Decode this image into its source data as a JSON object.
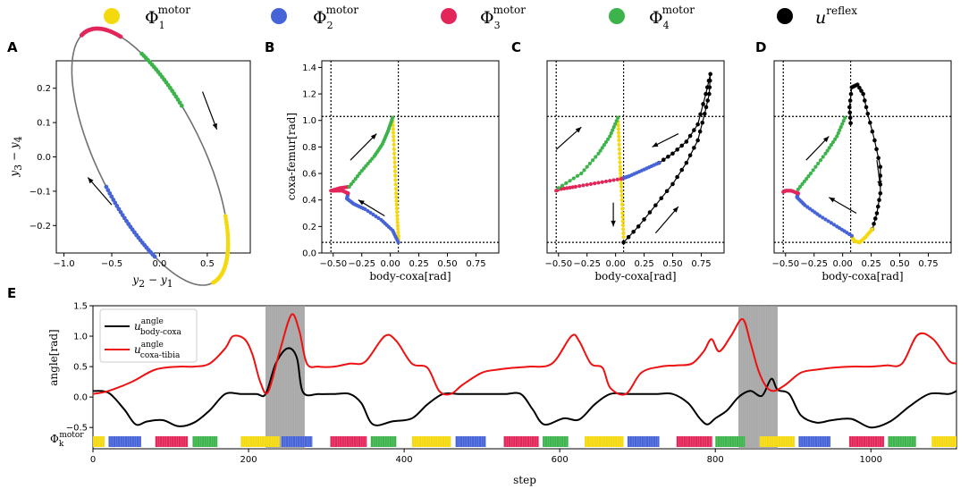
{
  "colors": {
    "phi1": "#f5d90f",
    "phi2": "#4664d8",
    "phi3": "#e2265a",
    "phi4": "#3cb44b",
    "reflex": "#000000",
    "gray": "#707070",
    "red_line": "#ee1111",
    "shade": "#8c8c8c"
  },
  "legend": [
    {
      "key": "phi1",
      "base": "Φ",
      "sub": "1",
      "sup": "motor"
    },
    {
      "key": "phi2",
      "base": "Φ",
      "sub": "2",
      "sup": "motor"
    },
    {
      "key": "phi3",
      "base": "Φ",
      "sub": "3",
      "sup": "motor"
    },
    {
      "key": "phi4",
      "base": "Φ",
      "sub": "4",
      "sup": "motor"
    },
    {
      "key": "reflex",
      "base": "u",
      "sub": "",
      "sup": "reflex"
    }
  ],
  "panels": {
    "A": {
      "letter": "A",
      "xlabel_base": "y",
      "xlabel_a": "2",
      "xlabel_op": " − ",
      "xlabel_b": "1",
      "ylabel_base": "y",
      "ylabel_a": "3",
      "ylabel_op": " − ",
      "ylabel_b": "4",
      "xticks": [
        "−1.0",
        "−0.5",
        "0.0",
        "0.5"
      ],
      "yticks": [
        "−0.2",
        "−0.1",
        "0.0",
        "0.1",
        "0.2"
      ]
    },
    "B": {
      "letter": "B",
      "xlabel": "body-coxa[rad]",
      "ylabel": "coxa-femur[rad]",
      "xticks": [
        "−0.50",
        "−0.25",
        "0.00",
        "0.25",
        "0.50",
        "0.75"
      ],
      "yticks": [
        "0.0",
        "0.2",
        "0.4",
        "0.6",
        "0.8",
        "1.0",
        "1.2",
        "1.4"
      ]
    },
    "C": {
      "letter": "C",
      "xlabel": "body-coxa[rad]",
      "xticks": [
        "−0.50",
        "−0.25",
        "0.00",
        "0.25",
        "0.50",
        "0.75"
      ]
    },
    "D": {
      "letter": "D",
      "xlabel": "body-coxa[rad]",
      "xticks": [
        "−0.50",
        "−0.25",
        "0.00",
        "0.25",
        "0.50",
        "0.75"
      ]
    },
    "E": {
      "letter": "E",
      "xlabel": "step",
      "ylabel": "angle[rad]",
      "xticks": [
        "0",
        "200",
        "400",
        "600",
        "800",
        "1000"
      ],
      "yticks": [
        "−0.5",
        "0.0",
        "0.5",
        "1.0",
        "1.5"
      ],
      "phase_label_base": "Φ",
      "phase_label_sub": "k",
      "phase_label_sup": "motor",
      "legend": [
        {
          "key": "black",
          "base": "u",
          "sup": "angle",
          "sub": "body-coxa"
        },
        {
          "key": "red",
          "base": "u",
          "sup": "angle",
          "sub": "coxa-tibia"
        }
      ]
    }
  },
  "chart_data": [
    {
      "type": "line",
      "panel": "A",
      "title": "",
      "xlabel": "y2 − y1",
      "ylabel": "y3 − y4",
      "xlim": [
        -1.08,
        0.95
      ],
      "ylim": [
        -0.28,
        0.28
      ],
      "description_points": "limit cycle ellipse",
      "ellipse": {
        "cx": -0.1,
        "cy": 0.0,
        "rx": 0.86,
        "ry": 0.262,
        "tilt_deg": -19
      },
      "phase_arcs": [
        {
          "phase": "phi1",
          "from_deg": -30,
          "to_deg": 22
        },
        {
          "phase": "phi2",
          "from_deg": -118,
          "to_deg": -80
        },
        {
          "phase": "phi3",
          "from_deg": 118,
          "to_deg": 158
        },
        {
          "phase": "phi4",
          "from_deg": 72,
          "to_deg": 102
        }
      ]
    },
    {
      "type": "scatter",
      "panel": "B",
      "xlabel": "body-coxa[rad]",
      "ylabel": "coxa-femur[rad]",
      "xlim": [
        -0.6,
        0.95
      ],
      "ylim": [
        0.0,
        1.45
      ],
      "guides": {
        "vx": [
          -0.52,
          0.07
        ],
        "hy": [
          0.08,
          1.03
        ]
      },
      "series": [
        {
          "phase": "phi1",
          "points": [
            [
              0.02,
              1.02
            ],
            [
              0.03,
              0.85
            ],
            [
              0.04,
              0.65
            ],
            [
              0.05,
              0.45
            ],
            [
              0.06,
              0.28
            ],
            [
              0.07,
              0.13
            ],
            [
              0.07,
              0.08
            ]
          ]
        },
        {
          "phase": "phi2",
          "points": [
            [
              0.07,
              0.08
            ],
            [
              0.02,
              0.17
            ],
            [
              -0.08,
              0.25
            ],
            [
              -0.22,
              0.33
            ],
            [
              -0.32,
              0.37
            ],
            [
              -0.38,
              0.41
            ],
            [
              -0.37,
              0.45
            ]
          ]
        },
        {
          "phase": "phi3",
          "points": [
            [
              -0.37,
              0.45
            ],
            [
              -0.42,
              0.47
            ],
            [
              -0.48,
              0.47
            ],
            [
              -0.52,
              0.47
            ],
            [
              -0.44,
              0.49
            ],
            [
              -0.36,
              0.5
            ]
          ]
        },
        {
          "phase": "phi4",
          "points": [
            [
              -0.36,
              0.5
            ],
            [
              -0.25,
              0.62
            ],
            [
              -0.14,
              0.73
            ],
            [
              -0.07,
              0.82
            ],
            [
              -0.02,
              0.92
            ],
            [
              0.02,
              1.02
            ]
          ]
        }
      ]
    },
    {
      "type": "scatter",
      "panel": "C",
      "xlabel": "body-coxa[rad]",
      "xlim": [
        -0.6,
        0.95
      ],
      "ylim": [
        0.0,
        1.45
      ],
      "guides": {
        "vx": [
          -0.52,
          0.07
        ],
        "hy": [
          0.08,
          1.03
        ]
      },
      "series": [
        {
          "phase": "phi1",
          "points": [
            [
              0.02,
              1.02
            ],
            [
              0.03,
              0.85
            ],
            [
              0.04,
              0.65
            ],
            [
              0.05,
              0.5
            ],
            [
              0.06,
              0.3
            ],
            [
              0.07,
              0.12
            ]
          ]
        },
        {
          "phase": "reflex",
          "points": [
            [
              0.07,
              0.08
            ],
            [
              0.2,
              0.2
            ],
            [
              0.35,
              0.36
            ],
            [
              0.5,
              0.52
            ],
            [
              0.62,
              0.68
            ],
            [
              0.72,
              0.85
            ],
            [
              0.78,
              1.05
            ],
            [
              0.82,
              1.2
            ],
            [
              0.83,
              1.35
            ],
            [
              0.79,
              1.2
            ],
            [
              0.72,
              0.97
            ],
            [
              0.62,
              0.84
            ],
            [
              0.5,
              0.75
            ],
            [
              0.38,
              0.68
            ]
          ]
        },
        {
          "phase": "phi2",
          "points": [
            [
              0.38,
              0.68
            ],
            [
              0.25,
              0.63
            ],
            [
              0.12,
              0.58
            ],
            [
              0.05,
              0.56
            ]
          ]
        },
        {
          "phase": "phi3",
          "points": [
            [
              0.05,
              0.56
            ],
            [
              -0.15,
              0.53
            ],
            [
              -0.35,
              0.5
            ],
            [
              -0.5,
              0.48
            ],
            [
              -0.52,
              0.47
            ]
          ]
        },
        {
          "phase": "phi4",
          "points": [
            [
              -0.5,
              0.49
            ],
            [
              -0.3,
              0.6
            ],
            [
              -0.15,
              0.75
            ],
            [
              -0.05,
              0.88
            ],
            [
              0.02,
              1.02
            ]
          ]
        }
      ]
    },
    {
      "type": "scatter",
      "panel": "D",
      "xlabel": "body-coxa[rad]",
      "xlim": [
        -0.6,
        0.95
      ],
      "ylim": [
        0.0,
        1.45
      ],
      "guides": {
        "vx": [
          -0.52,
          0.07
        ],
        "hy": [
          0.08,
          1.03
        ]
      },
      "series": [
        {
          "phase": "reflex",
          "points": [
            [
              0.07,
              0.98
            ],
            [
              0.06,
              1.1
            ],
            [
              0.08,
              1.25
            ],
            [
              0.13,
              1.27
            ],
            [
              0.18,
              1.2
            ],
            [
              0.22,
              1.05
            ],
            [
              0.28,
              0.85
            ],
            [
              0.33,
              0.65
            ],
            [
              0.33,
              0.45
            ],
            [
              0.3,
              0.3
            ],
            [
              0.26,
              0.18
            ]
          ]
        },
        {
          "phase": "phi1",
          "points": [
            [
              0.26,
              0.18
            ],
            [
              0.2,
              0.12
            ],
            [
              0.15,
              0.08
            ],
            [
              0.1,
              0.09
            ],
            [
              0.08,
              0.13
            ]
          ]
        },
        {
          "phase": "phi2",
          "points": [
            [
              0.08,
              0.13
            ],
            [
              -0.05,
              0.2
            ],
            [
              -0.2,
              0.28
            ],
            [
              -0.33,
              0.36
            ],
            [
              -0.4,
              0.42
            ],
            [
              -0.39,
              0.45
            ]
          ]
        },
        {
          "phase": "phi3",
          "points": [
            [
              -0.39,
              0.45
            ],
            [
              -0.45,
              0.47
            ],
            [
              -0.5,
              0.47
            ],
            [
              -0.52,
              0.46
            ]
          ]
        },
        {
          "phase": "phi4",
          "points": [
            [
              -0.39,
              0.48
            ],
            [
              -0.28,
              0.6
            ],
            [
              -0.15,
              0.75
            ],
            [
              -0.05,
              0.88
            ],
            [
              0.02,
              1.02
            ]
          ]
        }
      ]
    },
    {
      "type": "line",
      "panel": "E",
      "xlabel": "step",
      "ylabel": "angle[rad]",
      "xlim": [
        0,
        1110
      ],
      "ylim": [
        -0.85,
        1.5
      ],
      "shaded_regions": [
        [
          222,
          272
        ],
        [
          830,
          880
        ]
      ],
      "series": [
        {
          "name": "u_angle body-coxa",
          "key": "black",
          "x": [
            0,
            20,
            40,
            55,
            70,
            90,
            110,
            130,
            150,
            170,
            190,
            210,
            222,
            235,
            250,
            262,
            270,
            290,
            310,
            330,
            345,
            360,
            385,
            410,
            430,
            450,
            470,
            490,
            510,
            530,
            550,
            565,
            580,
            605,
            625,
            645,
            665,
            685,
            705,
            725,
            745,
            765,
            780,
            790,
            800,
            815,
            830,
            845,
            860,
            872,
            880,
            895,
            910,
            930,
            950,
            975,
            1000,
            1025,
            1050,
            1075,
            1100,
            1110
          ],
          "y": [
            0.1,
            0.07,
            -0.2,
            -0.45,
            -0.4,
            -0.38,
            -0.48,
            -0.42,
            -0.22,
            0.05,
            0.05,
            0.05,
            0.05,
            0.55,
            0.8,
            0.65,
            0.08,
            0.05,
            0.05,
            0.05,
            -0.1,
            -0.45,
            -0.4,
            -0.35,
            -0.12,
            0.05,
            0.05,
            0.05,
            0.05,
            0.05,
            0.05,
            -0.2,
            -0.45,
            -0.35,
            -0.37,
            -0.12,
            0.05,
            0.05,
            0.05,
            0.05,
            0.05,
            -0.1,
            -0.35,
            -0.45,
            -0.35,
            -0.22,
            0.0,
            0.1,
            0.02,
            0.3,
            0.12,
            0.05,
            -0.3,
            -0.42,
            -0.38,
            -0.36,
            -0.5,
            -0.4,
            -0.15,
            0.05,
            0.05,
            0.1
          ]
        },
        {
          "name": "u_angle coxa-tibia",
          "key": "red",
          "x": [
            0,
            20,
            50,
            80,
            110,
            130,
            150,
            170,
            180,
            195,
            205,
            215,
            225,
            240,
            255,
            265,
            275,
            290,
            310,
            330,
            350,
            375,
            390,
            410,
            430,
            445,
            460,
            475,
            500,
            520,
            540,
            560,
            590,
            615,
            625,
            640,
            655,
            665,
            685,
            705,
            730,
            750,
            770,
            785,
            795,
            805,
            820,
            835,
            845,
            855,
            865,
            875,
            890,
            910,
            930,
            950,
            975,
            1000,
            1020,
            1040,
            1060,
            1080,
            1100,
            1110
          ],
          "y": [
            0.05,
            0.1,
            0.25,
            0.45,
            0.5,
            0.5,
            0.55,
            0.8,
            1.0,
            0.95,
            0.7,
            0.25,
            0.08,
            0.75,
            1.35,
            1.1,
            0.55,
            0.5,
            0.5,
            0.55,
            0.58,
            1.0,
            0.92,
            0.55,
            0.48,
            0.1,
            0.05,
            0.2,
            0.4,
            0.45,
            0.48,
            0.5,
            0.55,
            1.0,
            0.92,
            0.55,
            0.48,
            0.15,
            0.05,
            0.4,
            0.5,
            0.52,
            0.55,
            0.75,
            0.95,
            0.75,
            1.0,
            1.28,
            0.9,
            0.45,
            0.18,
            0.1,
            0.2,
            0.4,
            0.45,
            0.48,
            0.5,
            0.5,
            0.52,
            0.55,
            1.02,
            0.95,
            0.6,
            0.55
          ]
        }
      ],
      "phase_bar": [
        {
          "phase": "phi1",
          "start": 0,
          "end": 15
        },
        {
          "phase": "phi2",
          "start": 20,
          "end": 62
        },
        {
          "phase": "phi3",
          "start": 80,
          "end": 122
        },
        {
          "phase": "phi4",
          "start": 128,
          "end": 160
        },
        {
          "phase": "phi1",
          "start": 190,
          "end": 240
        },
        {
          "phase": "phi2",
          "start": 242,
          "end": 282
        },
        {
          "phase": "phi3",
          "start": 305,
          "end": 352
        },
        {
          "phase": "phi4",
          "start": 357,
          "end": 390
        },
        {
          "phase": "phi1",
          "start": 410,
          "end": 460
        },
        {
          "phase": "phi2",
          "start": 466,
          "end": 505
        },
        {
          "phase": "phi3",
          "start": 528,
          "end": 573
        },
        {
          "phase": "phi4",
          "start": 578,
          "end": 611
        },
        {
          "phase": "phi1",
          "start": 632,
          "end": 682
        },
        {
          "phase": "phi2",
          "start": 687,
          "end": 728
        },
        {
          "phase": "phi3",
          "start": 750,
          "end": 796
        },
        {
          "phase": "phi4",
          "start": 800,
          "end": 838
        },
        {
          "phase": "phi1",
          "start": 857,
          "end": 902
        },
        {
          "phase": "phi2",
          "start": 907,
          "end": 948
        },
        {
          "phase": "phi3",
          "start": 972,
          "end": 1017
        },
        {
          "phase": "phi4",
          "start": 1022,
          "end": 1058
        },
        {
          "phase": "phi1",
          "start": 1078,
          "end": 1110
        }
      ]
    }
  ]
}
